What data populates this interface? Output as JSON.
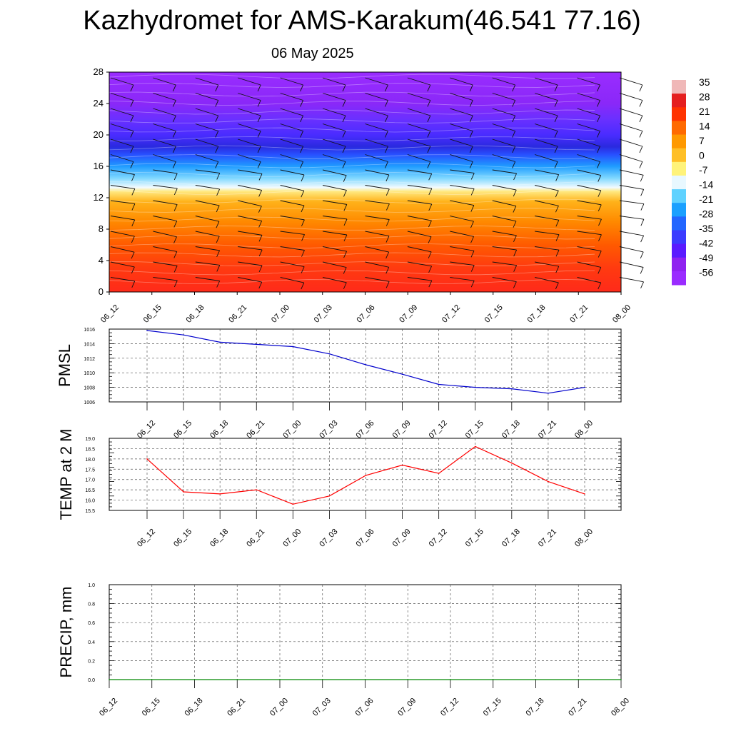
{
  "header": {
    "title": "Kazhydromet for AMS-Karakum(46.541 77.16)",
    "date": "06 May 2025"
  },
  "chart_data": [
    {
      "type": "heatmap",
      "title": "",
      "ylabel": "",
      "ylim": [
        0,
        28
      ],
      "yticks": [
        0,
        4,
        8,
        12,
        16,
        20,
        24,
        28
      ],
      "xlabels": [
        "06_12",
        "06_15",
        "06_18",
        "06_21",
        "07_00",
        "07_03",
        "07_06",
        "07_09",
        "07_12",
        "07_15",
        "07_18",
        "07_21",
        "08_00"
      ],
      "colorbar": {
        "labels": [
          "35",
          "28",
          "21",
          "14",
          "7",
          "0",
          "-7",
          "-14",
          "-21",
          "-28",
          "-35",
          "-42",
          "-49",
          "-56"
        ],
        "colors": [
          "#f0b8b8",
          "#e51f1f",
          "#ff3300",
          "#ff6a00",
          "#ff9900",
          "#ffbf26",
          "#fff37a",
          "#e8f8ff",
          "#5fd2ff",
          "#1aa0ff",
          "#2266ff",
          "#3b3bff",
          "#5a1aff",
          "#8f22f0",
          "#9a2cff"
        ]
      },
      "profile": [
        {
          "level": 0,
          "color": "#ff2a1a"
        },
        {
          "level": 3,
          "color": "#ff3a10"
        },
        {
          "level": 6,
          "color": "#ff5a00"
        },
        {
          "level": 9,
          "color": "#ff8a00"
        },
        {
          "level": 11.5,
          "color": "#ffb21a"
        },
        {
          "level": 12.8,
          "color": "#ffe980"
        },
        {
          "level": 13.3,
          "color": "#f2fbff"
        },
        {
          "level": 14.5,
          "color": "#7fd8ff"
        },
        {
          "level": 16,
          "color": "#1f9cff"
        },
        {
          "level": 17.5,
          "color": "#2850ff"
        },
        {
          "level": 18.5,
          "color": "#2a2adf"
        },
        {
          "level": 20,
          "color": "#4a2cff"
        },
        {
          "level": 22,
          "color": "#6a30ff"
        },
        {
          "level": 24,
          "color": "#8a28f8"
        },
        {
          "level": 28,
          "color": "#9a2cff"
        }
      ]
    },
    {
      "type": "line",
      "ylabel": "PMSL",
      "ylim": [
        1006,
        1016
      ],
      "yticks": [
        "1006",
        "1008",
        "1010",
        "1012",
        "1014",
        "1016"
      ],
      "x": [
        "06_12",
        "06_15",
        "06_18",
        "06_21",
        "07_00",
        "07_03",
        "07_06",
        "07_09",
        "07_12",
        "07_15",
        "07_18",
        "07_21",
        "08_00"
      ],
      "series": [
        {
          "values": [
            1015.8,
            1015.2,
            1014.2,
            1013.9,
            1013.6,
            1012.6,
            1011.1,
            1009.8,
            1008.4,
            1008.0,
            1007.8,
            1007.2,
            1008.0
          ],
          "color": "#0000cc"
        }
      ],
      "grid": true
    },
    {
      "type": "line",
      "ylabel": "TEMP at 2 M",
      "ylim": [
        15.5,
        19.0
      ],
      "yticks": [
        "15.5",
        "16.0",
        "16.5",
        "17.0",
        "17.5",
        "18.0",
        "18.5",
        "19.0"
      ],
      "x": [
        "06_12",
        "06_15",
        "06_18",
        "06_21",
        "07_00",
        "07_03",
        "07_06",
        "07_09",
        "07_12",
        "07_15",
        "07_18",
        "07_21",
        "08_00"
      ],
      "series": [
        {
          "values": [
            18.0,
            16.4,
            16.3,
            16.5,
            15.8,
            16.2,
            17.2,
            17.7,
            17.3,
            18.6,
            17.8,
            16.9,
            16.3
          ],
          "color": "#ff0000"
        }
      ],
      "grid": true
    },
    {
      "type": "line",
      "ylabel": "PRECIP, mm",
      "ylim": [
        0.0,
        1.0
      ],
      "yticks": [
        "0.0",
        "0.2",
        "0.4",
        "0.6",
        "0.8",
        "1.0"
      ],
      "x": [
        "06_12",
        "06_15",
        "06_18",
        "06_21",
        "07_00",
        "07_03",
        "07_06",
        "07_09",
        "07_12",
        "07_15",
        "07_18",
        "07_21",
        "08_00"
      ],
      "series": [
        {
          "values": [
            0,
            0,
            0,
            0,
            0,
            0,
            0,
            0,
            0,
            0,
            0,
            0,
            0
          ],
          "color": "#008800"
        }
      ],
      "grid": true
    }
  ]
}
